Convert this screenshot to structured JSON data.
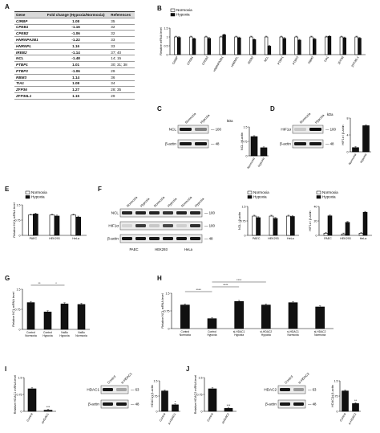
{
  "labels": {
    "A": "A",
    "B": "B",
    "C": "C",
    "D": "D",
    "E": "E",
    "F": "F",
    "G": "G",
    "H": "H",
    "I": "I",
    "J": "J"
  },
  "table": {
    "headers": [
      "Gene",
      "Fold change (Hypoxia/Normoxia)",
      "References"
    ],
    "rows": [
      [
        "CIRBP",
        "1.08",
        "35"
      ],
      [
        "CPEB1",
        "-1.16",
        "32"
      ],
      [
        "CPEB2",
        "-1.06",
        "32"
      ],
      [
        "HNRNPA2B1",
        "-1.22",
        "33"
      ],
      [
        "HNRNPL",
        "1.16",
        "33"
      ],
      [
        "IREB2",
        "-1.14",
        "37; 40"
      ],
      [
        "NCL",
        "-1.48",
        "14; 15"
      ],
      [
        "PTBP1",
        "1.01",
        "30; 31; 38"
      ],
      [
        "PTBP3",
        "-1.06",
        "29"
      ],
      [
        "RBM3",
        "1.14",
        "36"
      ],
      [
        "TIA1",
        "1.08",
        "34"
      ],
      [
        "ZFP36",
        "1.27",
        "28; 35"
      ],
      [
        "ZFP36L1",
        "1.15",
        "29"
      ]
    ]
  },
  "legend": {
    "normoxia": "Normoxia",
    "hypoxia": "Hypoxia"
  },
  "colors": {
    "normoxia": "#ffffff",
    "hypoxia": "#111111"
  },
  "chart_data": [
    {
      "id": "B",
      "type": "bar",
      "ylabel": "Relative mRNA level",
      "ylim": [
        0,
        1.5
      ],
      "categories": [
        "CIRBP",
        "CPEB1",
        "CPEB2",
        "HNRNPA2B1",
        "HNRNPL",
        "IREB2",
        "NCL",
        "PTBP1",
        "PTBP3",
        "RBM3",
        "TIA1",
        "ZFP36",
        "ZFP36L1"
      ],
      "series": [
        {
          "name": "Normoxia",
          "values": [
            1,
            1,
            1,
            1,
            1,
            1,
            1,
            1,
            1,
            1,
            1,
            1,
            1
          ]
        },
        {
          "name": "Hypoxia",
          "values": [
            0.97,
            0.9,
            0.92,
            1.12,
            0.95,
            0.85,
            0.48,
            0.92,
            0.82,
            0.88,
            1.03,
            0.95,
            0.93
          ]
        }
      ]
    },
    {
      "id": "C",
      "type": "bar",
      "ylabel": "NCL / β-actin",
      "ylim": [
        0,
        1.5
      ],
      "categories": [
        "Normoxia",
        "Hypoxia"
      ],
      "values": [
        1.0,
        0.42
      ]
    },
    {
      "id": "D",
      "type": "bar",
      "ylabel": "HIF1α / β-actin",
      "ylim": [
        0,
        8
      ],
      "categories": [
        "Normoxia",
        "Hypoxia"
      ],
      "values": [
        1.0,
        6.2
      ]
    },
    {
      "id": "E",
      "type": "bar",
      "ylabel": "Relative NCL mRNA level",
      "ylim": [
        0,
        1.5
      ],
      "categories": [
        "PAEC",
        "HEK293",
        "HeLa"
      ],
      "series": [
        {
          "name": "Normoxia",
          "values": [
            1,
            1,
            1
          ]
        },
        {
          "name": "Hypoxia",
          "values": [
            1.05,
            0.95,
            0.9
          ]
        }
      ]
    },
    {
      "id": "F1",
      "type": "bar",
      "ylabel": "NCL / β-actin",
      "ylim": [
        0,
        1.5
      ],
      "categories": [
        "PAEC",
        "HEK293",
        "HeLa"
      ],
      "series": [
        {
          "name": "Normoxia",
          "values": [
            1,
            1,
            1
          ]
        },
        {
          "name": "Hypoxia",
          "values": [
            0.92,
            0.88,
            0.98
          ]
        }
      ]
    },
    {
      "id": "F2",
      "type": "bar",
      "ylabel": "HIF1α / β-actin",
      "ylim": [
        0,
        40
      ],
      "categories": [
        "PAEC",
        "HEK293",
        "HeLa"
      ],
      "series": [
        {
          "name": "Normoxia",
          "values": [
            3,
            2,
            3
          ]
        },
        {
          "name": "Hypoxia",
          "values": [
            27,
            18,
            32
          ]
        }
      ]
    },
    {
      "id": "G",
      "type": "bar",
      "ylabel": "Relative NCL mRNA level",
      "ylim": [
        0,
        1.5
      ],
      "categories": [
        "Control Normoxia",
        "Control Hypoxia",
        "NaBu Hypoxia",
        "NaBu Normoxia"
      ],
      "values": [
        1.0,
        0.65,
        0.95,
        0.93
      ],
      "annotations": [
        "**",
        "*"
      ]
    },
    {
      "id": "H",
      "type": "bar",
      "ylabel": "Relative NCL mRNA level",
      "ylim": [
        0,
        1.5
      ],
      "categories": [
        "Control Normoxia",
        "Control Hypoxia",
        "si-HDAC1 Hypoxia",
        "si-HDAC2 Hypoxia",
        "si-HDAC1 Normoxia",
        "si-HDAC2 Normoxia"
      ],
      "values": [
        1.0,
        0.42,
        1.15,
        1.0,
        1.1,
        0.92
      ],
      "annotations": [
        "****",
        "****",
        "****"
      ]
    },
    {
      "id": "I1",
      "type": "bar",
      "ylabel": "Relative HDAC1 mRNA level",
      "ylim": [
        0,
        1.5
      ],
      "categories": [
        "Control",
        "siHDAC1"
      ],
      "values": [
        1.0,
        0.05
      ],
      "annotations": [
        "***"
      ]
    },
    {
      "id": "I2",
      "type": "bar",
      "ylabel": "HDAC1 / β-actin",
      "ylim": [
        0,
        1.5
      ],
      "categories": [
        "Control",
        "si-HDAC1"
      ],
      "values": [
        1.0,
        0.32
      ],
      "annotations": [
        "*"
      ]
    },
    {
      "id": "J1",
      "type": "bar",
      "ylabel": "Relative HDAC2 mRNA level",
      "ylim": [
        0,
        1.5
      ],
      "categories": [
        "Control",
        "siHDAC2"
      ],
      "values": [
        1.0,
        0.13
      ],
      "annotations": [
        "***"
      ]
    },
    {
      "id": "J2",
      "type": "bar",
      "ylabel": "HDAC2 / β-actin",
      "ylim": [
        0,
        1.5
      ],
      "categories": [
        "Control",
        "si-HDAC2"
      ],
      "values": [
        1.0,
        0.38
      ],
      "annotations": [
        "**"
      ]
    }
  ],
  "blots": {
    "C": {
      "lanes": [
        "Normoxia",
        "Hypoxia"
      ],
      "rows": [
        "NCL",
        "β-actin"
      ],
      "kda": [
        "100",
        "48"
      ],
      "kda_unit": "kDa"
    },
    "D": {
      "lanes": [
        "Normoxia",
        "Hypoxia"
      ],
      "rows": [
        "HIF1α",
        "β-actin"
      ],
      "kda": [
        "100",
        "48"
      ],
      "kda_unit": "kDa"
    },
    "F": {
      "lanes": [
        "Normoxia",
        "Hypoxia",
        "Normoxia",
        "Hypoxia",
        "Normoxia",
        "Hypoxia"
      ],
      "cells": [
        "PAEC",
        "HEK293",
        "HeLa"
      ],
      "rows": [
        "NCL",
        "HIF1α",
        "β-actin"
      ],
      "kda": [
        "100",
        "100",
        "48"
      ]
    },
    "I": {
      "lanes": [
        "Control",
        "si-HDAC1"
      ],
      "rows": [
        "HDAC1",
        "β-actin"
      ],
      "kda": [
        "63",
        "48"
      ]
    },
    "J": {
      "lanes": [
        "Control",
        "si-HDAC2"
      ],
      "rows": [
        "HDAC2",
        "β-actin"
      ],
      "kda": [
        "63",
        "48"
      ]
    }
  }
}
